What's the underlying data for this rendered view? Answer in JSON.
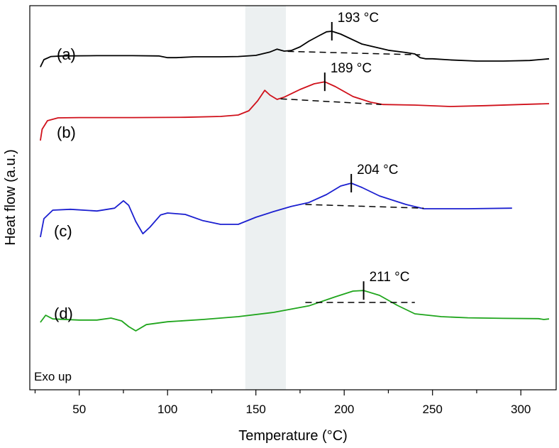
{
  "chart_data": {
    "type": "line",
    "xlabel": "Temperature (°C)",
    "ylabel": "Heat flow (a.u.)",
    "xlim": [
      22,
      320
    ],
    "xticks": [
      50,
      100,
      150,
      200,
      250,
      300
    ],
    "tick_labels": [
      "50",
      "100",
      "150",
      "200",
      "250",
      "300"
    ],
    "annotation": "Exo up",
    "highlight_band": [
      144,
      167
    ],
    "series": [
      {
        "name": "(a)",
        "color": "#000000",
        "points": [
          [
            28,
            0.09
          ],
          [
            30,
            0.35
          ],
          [
            34,
            0.46
          ],
          [
            40,
            0.48
          ],
          [
            60,
            0.49
          ],
          [
            80,
            0.49
          ],
          [
            95,
            0.48
          ],
          [
            100,
            0.42
          ],
          [
            105,
            0.42
          ],
          [
            115,
            0.45
          ],
          [
            130,
            0.45
          ],
          [
            140,
            0.46
          ],
          [
            150,
            0.5
          ],
          [
            158,
            0.62
          ],
          [
            162,
            0.72
          ],
          [
            166,
            0.65
          ],
          [
            170,
            0.67
          ],
          [
            175,
            0.8
          ],
          [
            180,
            1.0
          ],
          [
            186,
            1.2
          ],
          [
            190,
            1.33
          ],
          [
            193,
            1.35
          ],
          [
            198,
            1.25
          ],
          [
            210,
            0.9
          ],
          [
            225,
            0.68
          ],
          [
            235,
            0.6
          ],
          [
            240,
            0.55
          ],
          [
            243,
            0.42
          ],
          [
            246,
            0.38
          ],
          [
            250,
            0.38
          ],
          [
            260,
            0.34
          ],
          [
            275,
            0.3
          ],
          [
            290,
            0.3
          ],
          [
            305,
            0.32
          ],
          [
            316,
            0.38
          ]
        ],
        "peak": 193,
        "peak_label": "193 °C",
        "baseline": [
          [
            168,
            0.64
          ],
          [
            243,
            0.52
          ]
        ]
      },
      {
        "name": "(b)",
        "color": "#d0111b",
        "points": [
          [
            28,
            0.05
          ],
          [
            29,
            0.45
          ],
          [
            32,
            0.75
          ],
          [
            38,
            0.85
          ],
          [
            50,
            0.86
          ],
          [
            80,
            0.86
          ],
          [
            110,
            0.87
          ],
          [
            130,
            0.9
          ],
          [
            140,
            0.95
          ],
          [
            146,
            1.1
          ],
          [
            151,
            1.45
          ],
          [
            155,
            1.82
          ],
          [
            158,
            1.65
          ],
          [
            162,
            1.5
          ],
          [
            166,
            1.58
          ],
          [
            175,
            1.85
          ],
          [
            183,
            2.05
          ],
          [
            189,
            2.12
          ],
          [
            195,
            1.95
          ],
          [
            205,
            1.6
          ],
          [
            215,
            1.4
          ],
          [
            222,
            1.32
          ],
          [
            240,
            1.3
          ],
          [
            260,
            1.25
          ],
          [
            280,
            1.28
          ],
          [
            300,
            1.32
          ],
          [
            316,
            1.35
          ]
        ],
        "peak": 189,
        "peak_label": "189 °C",
        "baseline": [
          [
            164,
            1.52
          ],
          [
            221,
            1.32
          ]
        ]
      },
      {
        "name": "(c)",
        "color": "#1b1fd0",
        "points": [
          [
            28,
            0.1
          ],
          [
            30,
            0.75
          ],
          [
            35,
            1.05
          ],
          [
            45,
            1.08
          ],
          [
            60,
            1.02
          ],
          [
            70,
            1.12
          ],
          [
            75,
            1.38
          ],
          [
            78,
            1.22
          ],
          [
            82,
            0.65
          ],
          [
            86,
            0.22
          ],
          [
            90,
            0.45
          ],
          [
            96,
            0.88
          ],
          [
            100,
            0.95
          ],
          [
            110,
            0.9
          ],
          [
            120,
            0.68
          ],
          [
            130,
            0.55
          ],
          [
            140,
            0.55
          ],
          [
            150,
            0.8
          ],
          [
            160,
            1.0
          ],
          [
            170,
            1.18
          ],
          [
            180,
            1.32
          ],
          [
            190,
            1.6
          ],
          [
            198,
            1.9
          ],
          [
            204,
            2.0
          ],
          [
            210,
            1.85
          ],
          [
            220,
            1.55
          ],
          [
            235,
            1.25
          ],
          [
            245,
            1.1
          ],
          [
            250,
            1.1
          ],
          [
            270,
            1.1
          ],
          [
            295,
            1.12
          ]
        ],
        "peak": 204,
        "peak_label": "204 °C",
        "baseline": [
          [
            178,
            1.25
          ],
          [
            245,
            1.12
          ]
        ]
      },
      {
        "name": "(d)",
        "color": "#1fa51c",
        "points": [
          [
            28,
            0.2
          ],
          [
            31,
            0.45
          ],
          [
            35,
            0.32
          ],
          [
            50,
            0.28
          ],
          [
            60,
            0.28
          ],
          [
            68,
            0.35
          ],
          [
            74,
            0.25
          ],
          [
            78,
            0.05
          ],
          [
            82,
            -0.1
          ],
          [
            88,
            0.12
          ],
          [
            100,
            0.22
          ],
          [
            120,
            0.3
          ],
          [
            140,
            0.4
          ],
          [
            160,
            0.55
          ],
          [
            180,
            0.78
          ],
          [
            195,
            1.1
          ],
          [
            205,
            1.3
          ],
          [
            211,
            1.32
          ],
          [
            220,
            1.15
          ],
          [
            230,
            0.8
          ],
          [
            240,
            0.5
          ],
          [
            255,
            0.4
          ],
          [
            270,
            0.36
          ],
          [
            290,
            0.34
          ],
          [
            310,
            0.33
          ],
          [
            313,
            0.3
          ],
          [
            316,
            0.32
          ]
        ],
        "peak": 211,
        "peak_label": "211 °C",
        "baseline": [
          [
            178,
            0.9
          ],
          [
            240,
            0.9
          ]
        ]
      }
    ]
  }
}
